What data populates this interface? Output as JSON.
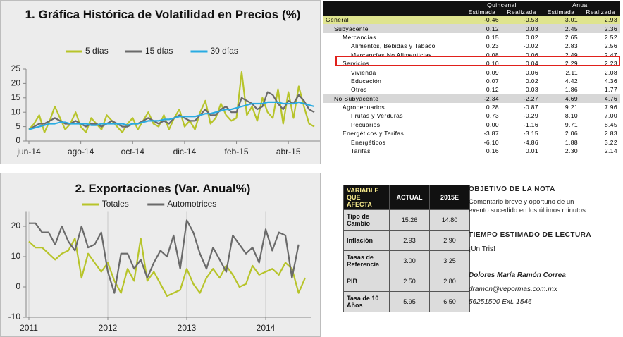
{
  "chart_data": [
    {
      "type": "line",
      "title": "1. Gráfica Histórica de Volatilidad en Precios (%)",
      "categories": [
        "jun-14",
        null,
        null,
        null,
        null,
        null,
        null,
        null,
        null,
        null,
        "ago-14",
        null,
        null,
        null,
        null,
        null,
        null,
        null,
        null,
        null,
        "oct-14",
        null,
        null,
        null,
        null,
        null,
        null,
        null,
        null,
        null,
        "dic-14",
        null,
        null,
        null,
        null,
        null,
        null,
        null,
        null,
        null,
        "feb-15",
        null,
        null,
        null,
        null,
        null,
        null,
        null,
        null,
        null,
        "abr-15",
        null,
        null,
        null,
        null,
        null
      ],
      "series": [
        {
          "name": "5 días",
          "color": "#b7c42a",
          "values": [
            4,
            6,
            9,
            3,
            7,
            12,
            8,
            4,
            6,
            10,
            5,
            3,
            8,
            6,
            4,
            9,
            7,
            5,
            3,
            6,
            8,
            4,
            7,
            10,
            6,
            5,
            9,
            4,
            8,
            11,
            5,
            7,
            4,
            10,
            14,
            6,
            8,
            13,
            9,
            7,
            8,
            24,
            9,
            12,
            7,
            15,
            10,
            8,
            18,
            6,
            17,
            8,
            19,
            12,
            6,
            5
          ]
        },
        {
          "name": "15 días",
          "color": "#6a6a6a",
          "values": [
            4,
            5,
            6,
            6,
            7,
            8,
            7,
            6,
            6,
            7,
            6,
            5,
            6,
            6,
            5,
            6,
            7,
            6,
            5,
            5,
            6,
            6,
            7,
            8,
            7,
            6,
            7,
            6,
            8,
            9,
            8,
            7,
            7,
            9,
            11,
            9,
            9,
            11,
            12,
            10,
            10,
            15,
            14,
            13,
            11,
            12,
            17,
            16,
            13,
            11,
            14,
            13,
            16,
            14,
            11,
            10
          ]
        },
        {
          "name": "30 días",
          "color": "#29abe2",
          "values": [
            4,
            4.5,
            5,
            5.5,
            6,
            6,
            6.5,
            6.5,
            6,
            6,
            6,
            6,
            5.5,
            5.5,
            6,
            6,
            6,
            6,
            6,
            5.5,
            6,
            6,
            6.5,
            7,
            7,
            7,
            7.5,
            7.5,
            8,
            8.5,
            8.5,
            8.5,
            8.5,
            9,
            9.5,
            9.5,
            10,
            10.5,
            11,
            11,
            11.5,
            12,
            12.5,
            13,
            13,
            13,
            13.5,
            13.5,
            13.5,
            13,
            13,
            13,
            13.5,
            13,
            12.5,
            12
          ]
        }
      ],
      "ylim": [
        0,
        25
      ],
      "yticks": [
        0,
        5,
        10,
        15,
        20,
        25
      ],
      "legend": "top",
      "xgrid": false
    },
    {
      "type": "line",
      "title": "2. Exportaciones (Var. Anual%)",
      "categories": [
        "2011",
        null,
        null,
        null,
        null,
        null,
        null,
        null,
        null,
        null,
        null,
        null,
        "2012",
        null,
        null,
        null,
        null,
        null,
        null,
        null,
        null,
        null,
        null,
        null,
        "2013",
        null,
        null,
        null,
        null,
        null,
        null,
        null,
        null,
        null,
        null,
        null,
        "2014",
        null,
        null,
        null,
        null,
        null,
        null
      ],
      "series": [
        {
          "name": "Totales",
          "color": "#b7c42a",
          "values": [
            15,
            13,
            13,
            11,
            9,
            11,
            12,
            16,
            3,
            11,
            8,
            5,
            8,
            2,
            -2,
            6,
            2,
            16,
            2,
            5,
            1,
            -3,
            -2,
            -1,
            6,
            1,
            -2,
            3,
            6,
            3,
            7,
            4,
            0,
            1,
            7,
            4,
            5,
            6,
            4,
            8,
            6,
            -2,
            3
          ]
        },
        {
          "name": "Automotrices",
          "color": "#6a6a6a",
          "values": [
            21,
            21,
            18,
            18,
            14,
            20,
            15,
            12,
            20,
            13,
            14,
            18,
            5,
            -2,
            11,
            11,
            6,
            9,
            3,
            8,
            12,
            10,
            17,
            6,
            22,
            18,
            11,
            6,
            13,
            9,
            5,
            17,
            14,
            11,
            13,
            8,
            19,
            12,
            18,
            17,
            3,
            14,
            null
          ]
        }
      ],
      "ylim": [
        -10,
        25
      ],
      "yticks": [
        -10,
        0,
        10,
        20
      ],
      "legend": "top",
      "xgrid": true
    }
  ],
  "inflation_table": {
    "groups": [
      "Quincenal",
      "Anual"
    ],
    "columns": [
      "Estimada",
      "Realizada",
      "Estimada",
      "Realizada"
    ],
    "rows": [
      [
        "General",
        "-0.46",
        "-0.53",
        "3.01",
        "2.93"
      ],
      [
        "Subyacente",
        "0.12",
        "0.03",
        "2.45",
        "2.36"
      ],
      [
        "Mercancías",
        "0.15",
        "0.02",
        "2.65",
        "2.52"
      ],
      [
        "Alimentos, Bebidas y Tabaco",
        "0.23",
        "-0.02",
        "2.83",
        "2.56"
      ],
      [
        "Mercancías No Alimenticias",
        "0.08",
        "0.06",
        "2.49",
        "2.47"
      ],
      [
        "Servicios",
        "0.10",
        "0.04",
        "2.29",
        "2.23"
      ],
      [
        "Vivienda",
        "0.09",
        "0.06",
        "2.11",
        "2.08"
      ],
      [
        "Educación",
        "0.07",
        "0.02",
        "4.42",
        "4.36"
      ],
      [
        "Otros",
        "0.12",
        "0.03",
        "1.86",
        "1.77"
      ],
      [
        "No Subyacente",
        "-2.34",
        "-2.27",
        "4.69",
        "4.76"
      ],
      [
        "Agropecuarios",
        "0.28",
        "-0.87",
        "9.21",
        "7.96"
      ],
      [
        "Frutas y Verduras",
        "0.73",
        "-0.29",
        "8.10",
        "7.00"
      ],
      [
        "Pecuarios",
        "0.00",
        "-1.16",
        "9.71",
        "8.45"
      ],
      [
        "Energéticos y Tarifas",
        "-3.87",
        "-3.15",
        "2.06",
        "2.83"
      ],
      [
        "Energéticos",
        "-6.10",
        "-4.86",
        "1.88",
        "3.22"
      ],
      [
        "Tarifas",
        "0.16",
        "0.01",
        "2.30",
        "2.14"
      ]
    ]
  },
  "forecast_table": {
    "header": [
      "VARIABLE QUE AFECTA",
      "ACTUAL",
      "2015E"
    ],
    "rows": [
      [
        "Tipo de Cambio",
        "15.26",
        "14.80"
      ],
      [
        "Inflación",
        "2.93",
        "2.90"
      ],
      [
        "Tasas de Referencia",
        "3.00",
        "3.25"
      ],
      [
        "PIB",
        "2.50",
        "2.80"
      ],
      [
        "Tasa de 10 Años",
        "5.95",
        "6.50"
      ]
    ]
  },
  "note": {
    "objective_heading": "OBJETIVO DE LA NOTA",
    "objective": "Comentario breve y oportuno de un evento sucedido en los últimos minutos",
    "time_heading": "TIEMPO ESTIMADO DE LECTURA",
    "time": "¡Un Tris!",
    "author": "Dolores María Ramón Correa",
    "email": "dramon@vepormas.com.mx",
    "phone": "56251500 Ext. 1546"
  }
}
